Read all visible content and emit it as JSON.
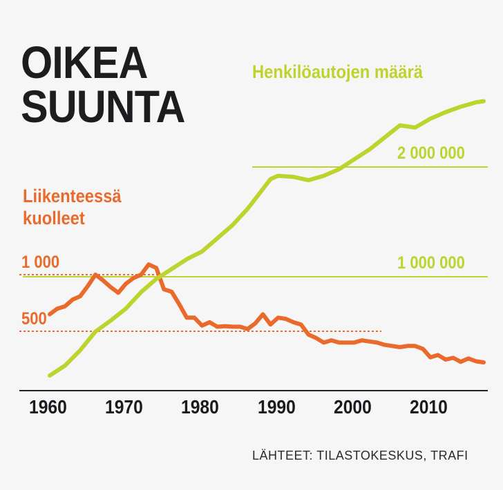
{
  "title_lines": [
    "OIKEA",
    "SUUNTA"
  ],
  "source": "LÄHTEET: TILASTOKESKUS, TRAFI",
  "colors": {
    "cars": "#bdd42e",
    "deaths": "#ea6a2c",
    "axis": "#222222",
    "title": "#1d1d1f"
  },
  "chart_data": {
    "type": "line",
    "x_ticks": [
      "1960",
      "1970",
      "1980",
      "1990",
      "2000",
      "2010"
    ],
    "xlim": [
      1960,
      2017
    ],
    "grid": false,
    "series": [
      {
        "name": "Henkilöautojen määrä",
        "color": "#bdd42e",
        "x": [
          1960,
          1962,
          1964,
          1966,
          1968,
          1970,
          1972,
          1974,
          1976,
          1978,
          1980,
          1982,
          1984,
          1986,
          1988,
          1989,
          1990,
          1992,
          1994,
          1996,
          1998,
          2000,
          2002,
          2004,
          2006,
          2008,
          2010,
          2012,
          2014,
          2016,
          2017
        ],
        "values": [
          100000,
          190000,
          330000,
          500000,
          600000,
          710000,
          860000,
          980000,
          1070000,
          1160000,
          1230000,
          1350000,
          1470000,
          1620000,
          1800000,
          1890000,
          1920000,
          1910000,
          1880000,
          1920000,
          1980000,
          2070000,
          2160000,
          2270000,
          2380000,
          2360000,
          2440000,
          2500000,
          2550000,
          2590000,
          2600000
        ],
        "axis": {
          "ticks": [
            {
              "value": 1000000,
              "label": "1 000 000"
            },
            {
              "value": 2000000,
              "label": "2 000 000"
            }
          ]
        }
      },
      {
        "name": "Liikenteessä kuolleet",
        "color": "#ea6a2c",
        "x": [
          1960,
          1961,
          1962,
          1963,
          1964,
          1965,
          1966,
          1967,
          1968,
          1969,
          1970,
          1971,
          1972,
          1973,
          1974,
          1975,
          1976,
          1977,
          1978,
          1979,
          1980,
          1981,
          1982,
          1983,
          1984,
          1985,
          1986,
          1987,
          1988,
          1989,
          1990,
          1991,
          1992,
          1993,
          1994,
          1995,
          1996,
          1997,
          1998,
          1999,
          2000,
          2001,
          2002,
          2003,
          2004,
          2005,
          2006,
          2007,
          2008,
          2009,
          2010,
          2011,
          2012,
          2013,
          2014,
          2015,
          2016,
          2017
        ],
        "values": [
          650,
          700,
          720,
          780,
          810,
          900,
          1000,
          950,
          890,
          840,
          920,
          970,
          1000,
          1090,
          1060,
          870,
          850,
          740,
          620,
          620,
          550,
          580,
          540,
          545,
          540,
          540,
          520,
          570,
          650,
          560,
          620,
          610,
          580,
          560,
          470,
          440,
          400,
          420,
          400,
          400,
          400,
          420,
          410,
          400,
          380,
          370,
          360,
          370,
          370,
          345,
          270,
          290,
          250,
          265,
          230,
          260,
          235,
          225
        ],
        "axis": {
          "ticks": [
            {
              "value": 500,
              "label": "500"
            },
            {
              "value": 1000,
              "label": "1 000"
            }
          ]
        }
      }
    ]
  }
}
